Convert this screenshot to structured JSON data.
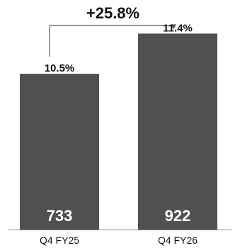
{
  "chart_data": {
    "type": "bar",
    "categories": [
      "Q4 FY25",
      "Q4 FY26"
    ],
    "values": [
      733,
      922
    ],
    "value_labels": [
      "733",
      "922"
    ],
    "percent_labels": [
      "10.5%",
      "11.4%"
    ],
    "growth_label": "+25.8%",
    "ylim": [
      0,
      1000
    ],
    "grid": false,
    "legend": "none"
  },
  "colors": {
    "bar": "#505050",
    "bar_value_text": "#ffffff",
    "label_text": "#111111",
    "axis": "#888888",
    "connector": "#555555"
  }
}
